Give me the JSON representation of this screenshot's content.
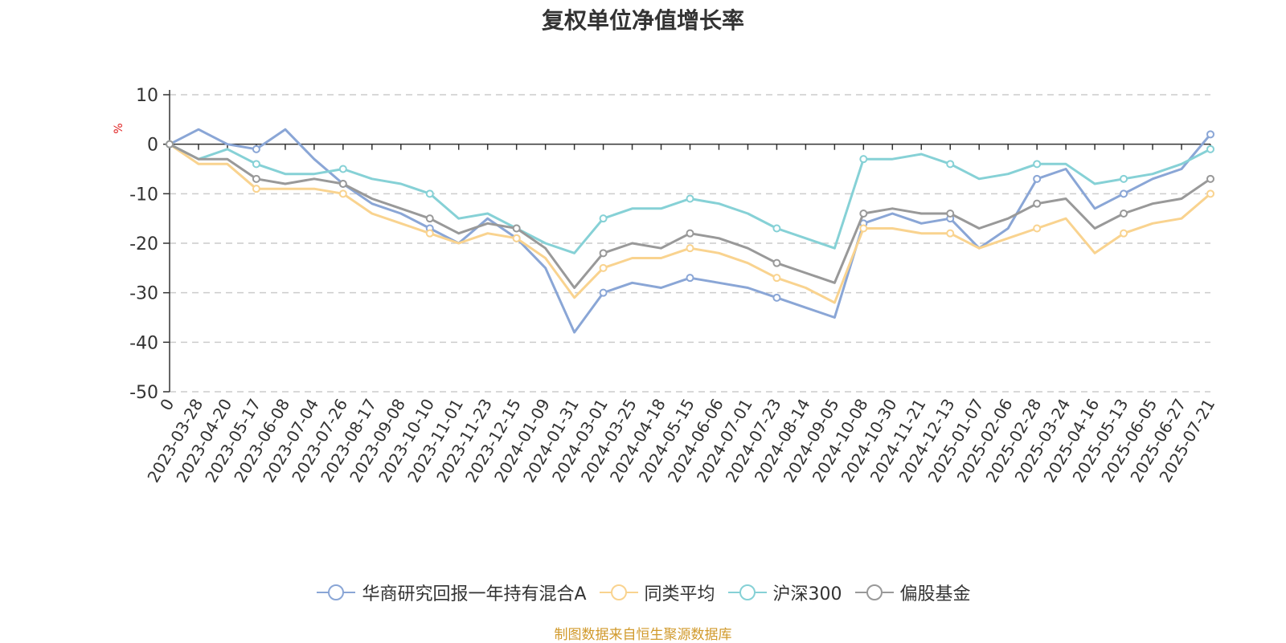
{
  "chart_data": {
    "type": "line",
    "title": "复权单位净值增长率",
    "ylabel": "%",
    "ylim": [
      -50,
      10
    ],
    "yticks": [
      10,
      0,
      -10,
      -20,
      -30,
      -40,
      -50
    ],
    "grid": true,
    "legend_position": "bottom",
    "x_tick_labels": [
      "0",
      "2023-03-28",
      "2023-04-20",
      "2023-05-17",
      "2023-06-08",
      "2023-07-04",
      "2023-07-26",
      "2023-08-17",
      "2023-09-08",
      "2023-10-10",
      "2023-11-01",
      "2023-11-23",
      "2023-12-15",
      "2024-01-09",
      "2024-01-31",
      "2024-03-01",
      "2024-03-25",
      "2024-04-18",
      "2024-05-15",
      "2024-06-06",
      "2024-07-01",
      "2024-07-23",
      "2024-08-14",
      "2024-09-05",
      "2024-10-08",
      "2024-10-30",
      "2024-11-21",
      "2024-12-13",
      "2025-01-07",
      "2025-02-06",
      "2025-02-28",
      "2025-03-24",
      "2025-04-16",
      "2025-05-13",
      "2025-06-05",
      "2025-06-27",
      "2025-07-21"
    ],
    "series": [
      {
        "name": "华商研究回报一年持有混合A",
        "color": "#8aa6d6",
        "values": [
          0,
          3,
          0,
          -1,
          3,
          -3,
          -8,
          -12,
          -14,
          -17,
          -20,
          -15,
          -19,
          -25,
          -38,
          -30,
          -28,
          -29,
          -27,
          -28,
          -29,
          -31,
          -33,
          -35,
          -16,
          -14,
          -16,
          -15,
          -21,
          -17,
          -7,
          -5,
          -13,
          -10,
          -7,
          -5,
          2
        ]
      },
      {
        "name": "同类平均",
        "color": "#f9d38f",
        "values": [
          0,
          -4,
          -4,
          -9,
          -9,
          -9,
          -10,
          -14,
          -16,
          -18,
          -20,
          -18,
          -19,
          -23,
          -31,
          -25,
          -23,
          -23,
          -21,
          -22,
          -24,
          -27,
          -29,
          -32,
          -17,
          -17,
          -18,
          -18,
          -21,
          -19,
          -17,
          -15,
          -22,
          -18,
          -16,
          -15,
          -10
        ]
      },
      {
        "name": "沪深300",
        "color": "#86d1d6",
        "values": [
          0,
          -3,
          -1,
          -4,
          -6,
          -6,
          -5,
          -7,
          -8,
          -10,
          -15,
          -14,
          -17,
          -20,
          -22,
          -15,
          -13,
          -13,
          -11,
          -12,
          -14,
          -17,
          -19,
          -21,
          -3,
          -3,
          -2,
          -4,
          -7,
          -6,
          -4,
          -4,
          -8,
          -7,
          -6,
          -4,
          -1
        ]
      },
      {
        "name": "偏股基金",
        "color": "#999999",
        "values": [
          0,
          -3,
          -3,
          -7,
          -8,
          -7,
          -8,
          -11,
          -13,
          -15,
          -18,
          -16,
          -17,
          -21,
          -29,
          -22,
          -20,
          -21,
          -18,
          -19,
          -21,
          -24,
          -26,
          -28,
          -14,
          -13,
          -14,
          -14,
          -17,
          -15,
          -12,
          -11,
          -17,
          -14,
          -12,
          -11,
          -7
        ]
      }
    ]
  },
  "source_note": "制图数据来自恒生聚源数据库"
}
